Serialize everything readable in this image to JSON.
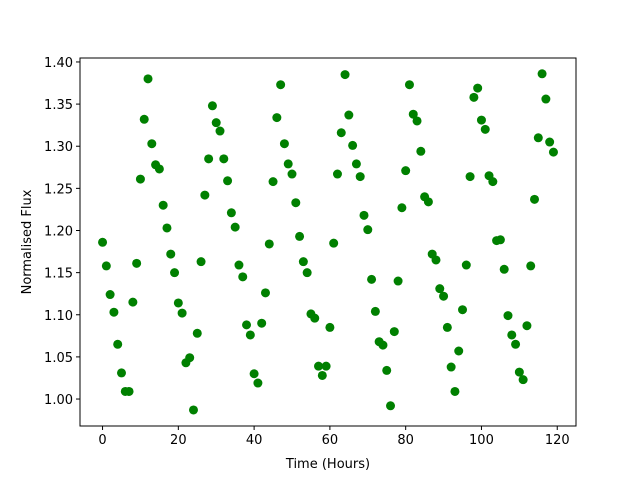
{
  "chart_data": {
    "type": "scatter",
    "xlabel": "Time (Hours)",
    "ylabel": "Normalised Flux",
    "color": "#008000",
    "x": [
      0,
      1,
      2,
      3,
      4,
      5,
      6,
      7,
      8,
      9,
      10,
      11,
      12,
      13,
      14,
      15,
      16,
      17,
      18,
      19,
      20,
      21,
      22,
      23,
      24,
      25,
      26,
      27,
      28,
      29,
      30,
      31,
      32,
      33,
      34,
      35,
      36,
      37,
      38,
      39,
      40,
      41,
      42,
      43,
      44,
      45,
      46,
      47,
      48,
      49,
      50,
      51,
      52,
      53,
      54,
      55,
      56,
      57,
      58,
      59,
      60,
      61,
      62,
      63,
      64,
      65,
      66,
      67,
      68,
      69,
      70,
      71,
      72,
      73,
      74,
      75,
      76,
      77,
      78,
      79,
      80,
      81,
      82,
      83,
      84,
      85,
      86,
      87,
      88,
      89,
      90,
      91,
      92,
      93,
      94,
      95,
      96,
      97,
      98,
      99,
      100,
      101,
      102,
      103,
      104,
      105,
      106,
      107,
      108,
      109,
      110,
      111,
      112,
      113,
      114,
      115,
      116,
      117,
      118,
      119
    ],
    "values": [
      1.186,
      1.158,
      1.124,
      1.103,
      1.065,
      1.031,
      1.009,
      1.009,
      1.115,
      1.161,
      1.261,
      1.332,
      1.38,
      1.303,
      1.278,
      1.273,
      1.23,
      1.203,
      1.172,
      1.15,
      1.114,
      1.102,
      1.043,
      1.049,
      0.987,
      1.078,
      1.163,
      1.242,
      1.285,
      1.348,
      1.328,
      1.318,
      1.285,
      1.259,
      1.221,
      1.204,
      1.159,
      1.145,
      1.088,
      1.076,
      1.03,
      1.019,
      1.09,
      1.126,
      1.184,
      1.258,
      1.334,
      1.373,
      1.303,
      1.279,
      1.267,
      1.233,
      1.193,
      1.163,
      1.15,
      1.101,
      1.096,
      1.039,
      1.028,
      1.039,
      1.085,
      1.185,
      1.267,
      1.316,
      1.385,
      1.337,
      1.301,
      1.279,
      1.264,
      1.218,
      1.201,
      1.142,
      1.104,
      1.068,
      1.064,
      1.034,
      0.992,
      1.08,
      1.14,
      1.227,
      1.271,
      1.373,
      1.338,
      1.33,
      1.294,
      1.24,
      1.234,
      1.172,
      1.165,
      1.131,
      1.122,
      1.085,
      1.038,
      1.009,
      1.057,
      1.106,
      1.159,
      1.264,
      1.358,
      1.369,
      1.331,
      1.32,
      1.265,
      1.258,
      1.188,
      1.189,
      1.154,
      1.099,
      1.076,
      1.065,
      1.032,
      1.023,
      1.087,
      1.158,
      1.237,
      1.31,
      1.386,
      1.356,
      1.305,
      1.293
    ],
    "xlim": [
      -5.95,
      124.95
    ],
    "xticks": [
      0,
      20,
      40,
      60,
      80,
      100,
      120
    ],
    "ylim": [
      0.968,
      1.4047
    ],
    "yticks": [
      {
        "value": 1.0,
        "label": "1.00"
      },
      {
        "value": 1.05,
        "label": "1.05"
      },
      {
        "value": 1.1,
        "label": "1.10"
      },
      {
        "value": 1.15,
        "label": "1.15"
      },
      {
        "value": 1.2,
        "label": "1.20"
      },
      {
        "value": 1.25,
        "label": "1.25"
      },
      {
        "value": 1.3,
        "label": "1.30"
      },
      {
        "value": 1.35,
        "label": "1.35"
      },
      {
        "value": 1.4,
        "label": "1.40"
      }
    ]
  }
}
